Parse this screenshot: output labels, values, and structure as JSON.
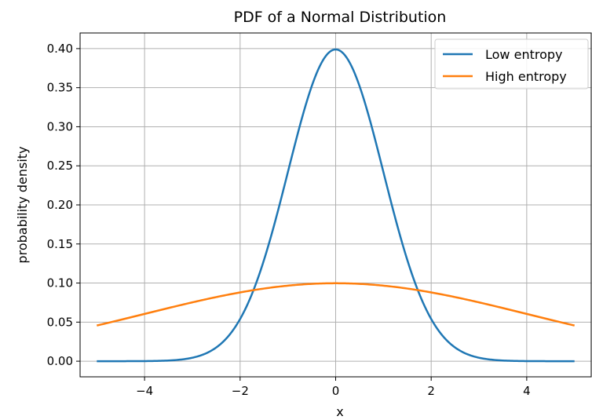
{
  "chart_data": {
    "type": "line",
    "title": "PDF of a Normal Distribution",
    "xlabel": "x",
    "ylabel": "probability density",
    "xlim": [
      -5.35,
      5.35
    ],
    "ylim": [
      -0.02,
      0.42
    ],
    "xticks": [
      -4,
      -2,
      0,
      2,
      4
    ],
    "xtick_labels": [
      "−4",
      "−2",
      "0",
      "2",
      "4"
    ],
    "yticks": [
      0.0,
      0.05,
      0.1,
      0.15,
      0.2,
      0.25,
      0.3,
      0.35,
      0.4
    ],
    "ytick_labels": [
      "0.00",
      "0.05",
      "0.10",
      "0.15",
      "0.20",
      "0.25",
      "0.30",
      "0.35",
      "0.40"
    ],
    "grid": true,
    "legend_position": "top-right",
    "x_range": [
      -5,
      5
    ],
    "series": [
      {
        "name": "Low entropy",
        "color": "#1f77b4",
        "x": [
          -5.0,
          -4.5,
          -4.0,
          -3.5,
          -3.0,
          -2.5,
          -2.0,
          -1.5,
          -1.0,
          -0.5,
          0.0,
          0.5,
          1.0,
          1.5,
          2.0,
          2.5,
          3.0,
          3.5,
          4.0,
          4.5,
          5.0
        ],
        "y": [
          0.0,
          0.0,
          0.0001,
          0.0009,
          0.0044,
          0.0175,
          0.054,
          0.1295,
          0.242,
          0.3521,
          0.3989,
          0.3521,
          0.242,
          0.1295,
          0.054,
          0.0175,
          0.0044,
          0.0009,
          0.0001,
          0.0,
          0.0
        ]
      },
      {
        "name": "High entropy",
        "color": "#ff7f0e",
        "x": [
          -5.0,
          -4.5,
          -4.0,
          -3.5,
          -3.0,
          -2.5,
          -2.0,
          -1.5,
          -1.0,
          -0.5,
          0.0,
          0.5,
          1.0,
          1.5,
          2.0,
          2.5,
          3.0,
          3.5,
          4.0,
          4.5,
          5.0
        ],
        "y": [
          0.0457,
          0.0532,
          0.0606,
          0.0675,
          0.0739,
          0.0807,
          0.0862,
          0.0909,
          0.0951,
          0.0987,
          0.0997,
          0.0987,
          0.0951,
          0.0909,
          0.0862,
          0.0807,
          0.0739,
          0.0675,
          0.0606,
          0.0532,
          0.0457
        ]
      }
    ]
  }
}
